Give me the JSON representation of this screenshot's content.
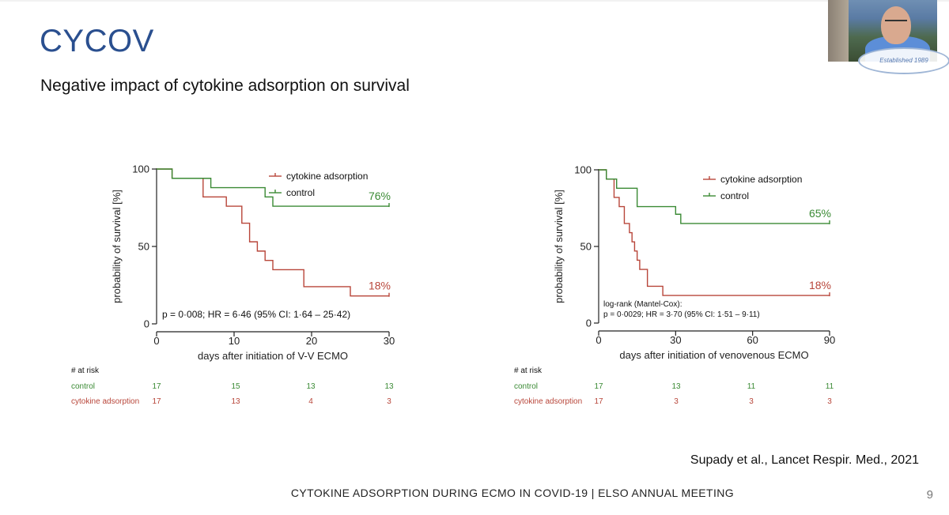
{
  "slide": {
    "title": "CYCOV",
    "subtitle": "Negative impact of cytokine adsorption on survival",
    "citation": "Supady et al., Lancet Respir. Med., 2021",
    "footer": "CYTOKINE ADSORPTION DURING ECMO IN COVID-19 | ELSO ANNUAL MEETING",
    "page_number": "9",
    "logo_text": "Established 1989"
  },
  "colors": {
    "title": "#2a4f8f",
    "cytokine": "#b8463a",
    "control": "#3a8a34",
    "axis": "#222222"
  },
  "chart_data": [
    {
      "type": "line",
      "subtype": "kaplan-meier",
      "title": "",
      "xlabel": "days after initiation of  V-V  ECMO",
      "ylabel": "probability of survival [%]",
      "xlim": [
        0,
        30
      ],
      "ylim": [
        0,
        100
      ],
      "xticks": [
        0,
        10,
        20,
        30
      ],
      "yticks": [
        0,
        50,
        100
      ],
      "legend": [
        "cytokine adsorption",
        "control"
      ],
      "legend_position": "top-right",
      "annotation": "p = 0·008; HR = 6·46 (95% CI: 1·64 – 25·42)",
      "series": [
        {
          "name": "cytokine adsorption",
          "color": "#b8463a",
          "end_label": "18%",
          "x": [
            0,
            2,
            6,
            9,
            11,
            12,
            13,
            14,
            15,
            19,
            25,
            30
          ],
          "y": [
            100,
            94,
            82,
            76,
            65,
            53,
            47,
            41,
            35,
            24,
            18,
            18
          ]
        },
        {
          "name": "control",
          "color": "#3a8a34",
          "end_label": "76%",
          "x": [
            0,
            2,
            7,
            14,
            15,
            30
          ],
          "y": [
            100,
            94,
            88,
            82,
            76,
            76
          ]
        }
      ],
      "risk_table": {
        "header": "# at risk",
        "timepoints": [
          "0",
          "10",
          "20",
          "30"
        ],
        "rows": [
          {
            "name": "control",
            "values": [
              "17",
              "15",
              "13",
              "13"
            ]
          },
          {
            "name": "cytokine adsorption",
            "values": [
              "17",
              "13",
              "4",
              "3"
            ]
          }
        ]
      }
    },
    {
      "type": "line",
      "subtype": "kaplan-meier",
      "title": "",
      "xlabel": "days after initiation of venovenous ECMO",
      "ylabel": "probability of survival [%]",
      "xlim": [
        0,
        90
      ],
      "ylim": [
        0,
        100
      ],
      "xticks": [
        0,
        30,
        60,
        90
      ],
      "yticks": [
        0,
        50,
        100
      ],
      "legend": [
        "cytokine adsorption",
        "control"
      ],
      "legend_position": "top-right",
      "annotation": "log-rank (Mantel-Cox):",
      "annotation2": "p = 0·0029; HR = 3·70 (95% CI: 1·51 – 9·11)",
      "series": [
        {
          "name": "cytokine adsorption",
          "color": "#b8463a",
          "end_label": "18%",
          "x": [
            0,
            3,
            6,
            8,
            10,
            12,
            13,
            14,
            15,
            16,
            19,
            25,
            90
          ],
          "y": [
            100,
            94,
            82,
            76,
            65,
            59,
            53,
            47,
            41,
            35,
            24,
            18,
            18
          ]
        },
        {
          "name": "control",
          "color": "#3a8a34",
          "end_label": "65%",
          "x": [
            0,
            3,
            7,
            15,
            30,
            32,
            90
          ],
          "y": [
            100,
            94,
            88,
            76,
            71,
            65,
            65
          ]
        }
      ],
      "risk_table": {
        "header": "# at risk",
        "timepoints": [
          "0",
          "30",
          "60",
          "90"
        ],
        "rows": [
          {
            "name": "control",
            "values": [
              "17",
              "13",
              "11",
              "11"
            ]
          },
          {
            "name": "cytokine adsorption",
            "values": [
              "17",
              "3",
              "3",
              "3"
            ]
          }
        ]
      }
    }
  ]
}
